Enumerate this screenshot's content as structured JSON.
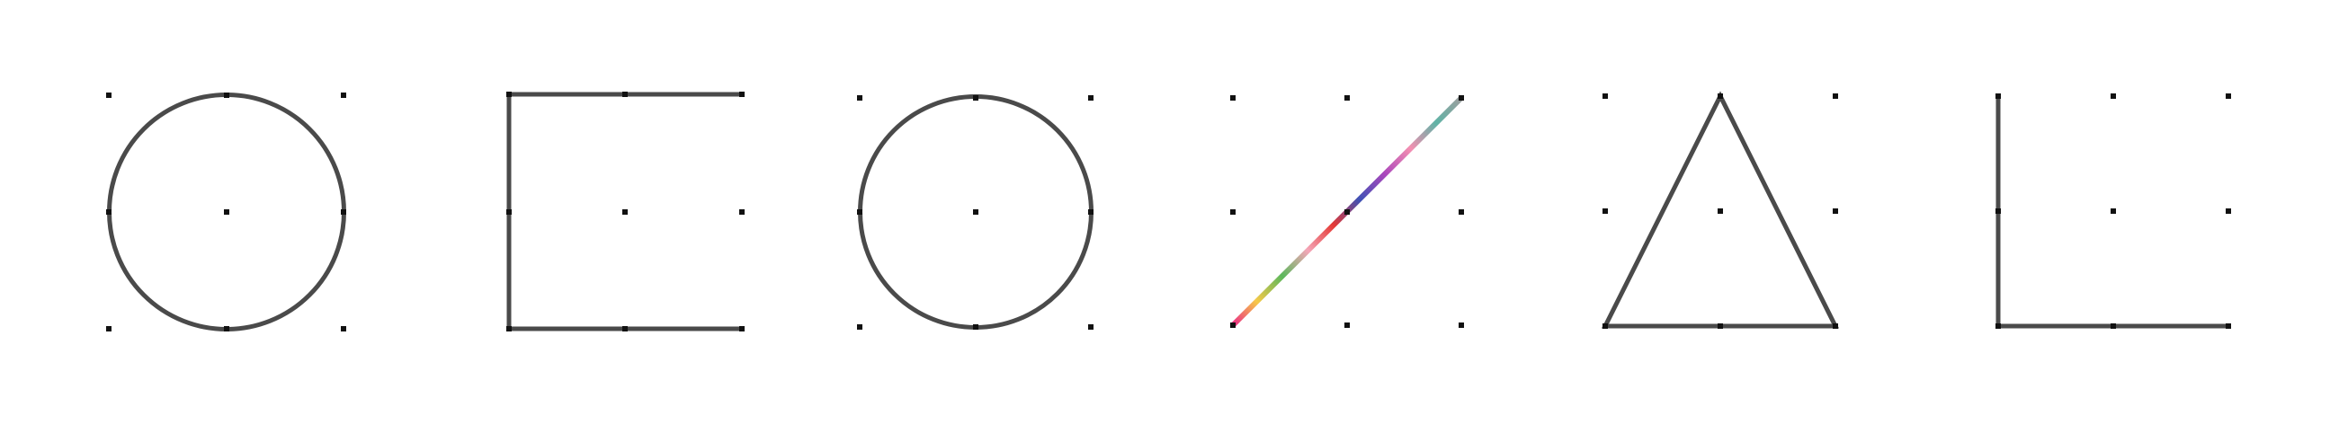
{
  "colors": {
    "background": "#ffffff",
    "stroke": "#4a4a4a",
    "dot": "#111111",
    "rainbow": [
      "#e91e8c",
      "#f7c948",
      "#5cb85c",
      "#f4a6b8",
      "#e53935",
      "#3f51b5",
      "#ab47bc",
      "#f48fb1",
      "#5fb3a6",
      "#9e9e9e"
    ]
  },
  "panels": [
    {
      "id": "panel-1",
      "shape": "circle",
      "icon": "circle-icon"
    },
    {
      "id": "panel-2",
      "shape": "open-rectangle",
      "icon": "open-rectangle-icon"
    },
    {
      "id": "panel-3",
      "shape": "circle",
      "icon": "circle-icon"
    },
    {
      "id": "panel-4",
      "shape": "diagonal-line",
      "icon": "rainbow-diagonal-line-icon"
    },
    {
      "id": "panel-5",
      "shape": "triangle",
      "icon": "triangle-icon"
    },
    {
      "id": "panel-6",
      "shape": "l-shape",
      "icon": "l-shape-icon"
    }
  ]
}
